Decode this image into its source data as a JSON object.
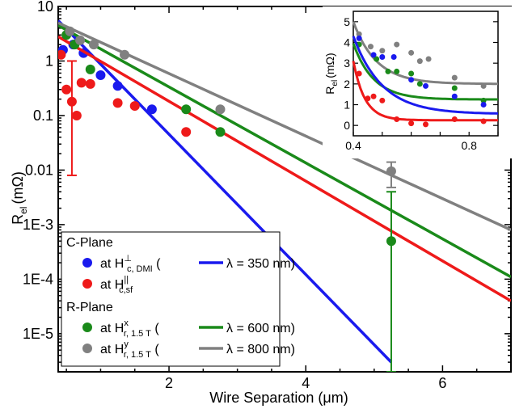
{
  "chart_data": {
    "type": "scatter",
    "xlabel": "Wire Separation (μm)",
    "ylabel_base": "R",
    "ylabel_sub": "el",
    "ylabel_unit": "(mΩ)",
    "xlim": [
      0.38,
      7.0
    ],
    "ylim": [
      2e-06,
      10
    ],
    "yscale": "log",
    "x_ticks": [
      2,
      4,
      6
    ],
    "y_ticks": [
      {
        "v": 10,
        "label": "10"
      },
      {
        "v": 1,
        "label": "1"
      },
      {
        "v": 0.1,
        "label": "0.1"
      },
      {
        "v": 0.01,
        "label": "0.01"
      },
      {
        "v": 0.001,
        "label": "1E-3"
      },
      {
        "v": 0.0001,
        "label": "1E-4"
      },
      {
        "v": 1e-05,
        "label": "1E-5"
      }
    ],
    "series": [
      {
        "color": "#1a1aee",
        "points": [
          [
            0.45,
            1.6
          ],
          [
            0.6,
            2.0
          ],
          [
            0.75,
            1.4
          ],
          [
            1.0,
            0.55
          ],
          [
            1.25,
            0.35
          ],
          [
            1.75,
            0.13
          ]
        ],
        "fit": [
          [
            0.38,
            5.5
          ],
          [
            5.25,
            3e-06
          ]
        ]
      },
      {
        "color": "#ee1a1a",
        "points": [
          [
            0.42,
            1.3
          ],
          [
            0.5,
            0.3
          ],
          [
            0.58,
            0.18
          ],
          [
            0.65,
            0.1
          ],
          [
            0.72,
            0.4
          ],
          [
            0.85,
            0.38
          ],
          [
            1.25,
            0.17
          ],
          [
            1.5,
            0.15
          ],
          [
            2.25,
            0.05
          ]
        ],
        "errors": [
          [
            0.58,
            0.008,
            1.0
          ]
        ],
        "fit": [
          [
            0.38,
            2.8
          ],
          [
            7.0,
            4e-05
          ]
        ]
      },
      {
        "color": "#1a8a1a",
        "points": [
          [
            0.5,
            3.0
          ],
          [
            0.62,
            2.0
          ],
          [
            0.85,
            0.7
          ],
          [
            2.25,
            0.13
          ],
          [
            2.75,
            0.05
          ],
          [
            5.25,
            0.0005
          ]
        ],
        "errors": [
          [
            5.25,
            2e-06,
            0.004
          ]
        ],
        "fit": [
          [
            0.38,
            4.5
          ],
          [
            7.0,
            0.00011
          ]
        ]
      },
      {
        "color": "#808080",
        "points": [
          [
            0.55,
            3.5
          ],
          [
            0.7,
            2.4
          ],
          [
            0.9,
            2.0
          ],
          [
            1.35,
            1.3
          ],
          [
            2.75,
            0.13
          ],
          [
            5.25,
            0.0095
          ]
        ],
        "errors": [
          [
            5.25,
            0.0048,
            0.014
          ]
        ],
        "fit": [
          [
            0.38,
            5.0
          ],
          [
            7.0,
            0.0008
          ]
        ]
      }
    ],
    "legend": {
      "groups": [
        {
          "heading": "C-Plane",
          "rows": [
            {
              "marker": "#1a1aee",
              "at": "at H",
              "sup": "⊥",
              "sub": "c, DMI",
              "fit": "λ = 350 nm"
            },
            {
              "marker": "#ee1a1a",
              "at": "at H",
              "sup": "||",
              "sub": "c,sf",
              "fit": ""
            }
          ]
        },
        {
          "heading": "R-Plane",
          "rows": [
            {
              "marker": "#1a8a1a",
              "at": "at H",
              "sup": "x",
              "sub": "r, 1.5 T",
              "fit": "λ = 600 nm"
            },
            {
              "marker": "#808080",
              "at": "at H",
              "sup": "y",
              "sub": "r, 1.5 T",
              "fit": "λ = 800 nm"
            }
          ]
        }
      ]
    },
    "inset": {
      "ylabel": "R",
      "ylabel_sub": "el",
      "ylabel_unit": "(mΩ)",
      "xlim": [
        0.4,
        0.9
      ],
      "ylim": [
        -0.5,
        5.5
      ],
      "x_ticks": [
        0.4,
        0.8
      ],
      "y_ticks": [
        0,
        1,
        2,
        3,
        4,
        5
      ],
      "series": [
        {
          "color": "#808080",
          "points": [
            [
              0.42,
              4.4
            ],
            [
              0.46,
              3.8
            ],
            [
              0.5,
              3.6
            ],
            [
              0.55,
              3.9
            ],
            [
              0.6,
              3.5
            ],
            [
              0.63,
              3.1
            ],
            [
              0.66,
              3.2
            ],
            [
              0.75,
              2.3
            ],
            [
              0.85,
              1.9
            ]
          ],
          "decay": [
            2.0,
            3.0,
            0.08
          ]
        },
        {
          "color": "#1a8a1a",
          "points": [
            [
              0.42,
              3.9
            ],
            [
              0.48,
              3.2
            ],
            [
              0.52,
              2.6
            ],
            [
              0.55,
              2.6
            ],
            [
              0.6,
              2.5
            ],
            [
              0.63,
              2.0
            ],
            [
              0.75,
              1.8
            ],
            [
              0.85,
              1.2
            ]
          ],
          "decay": [
            1.25,
            2.7,
            0.07
          ]
        },
        {
          "color": "#1a1aee",
          "points": [
            [
              0.42,
              4.2
            ],
            [
              0.47,
              3.4
            ],
            [
              0.5,
              3.3
            ],
            [
              0.54,
              3.3
            ],
            [
              0.6,
              2.2
            ],
            [
              0.65,
              1.9
            ],
            [
              0.75,
              1.4
            ],
            [
              0.85,
              1.0
            ]
          ],
          "decay": [
            0.55,
            3.75,
            0.1
          ]
        },
        {
          "color": "#ee1a1a",
          "points": [
            [
              0.42,
              2.5
            ],
            [
              0.45,
              1.3
            ],
            [
              0.47,
              1.4
            ],
            [
              0.5,
              1.2
            ],
            [
              0.55,
              0.3
            ],
            [
              0.6,
              0.1
            ],
            [
              0.65,
              0.05
            ],
            [
              0.75,
              0.3
            ],
            [
              0.85,
              0.2
            ]
          ],
          "decay": [
            0.25,
            2.85,
            0.04
          ]
        }
      ]
    }
  }
}
